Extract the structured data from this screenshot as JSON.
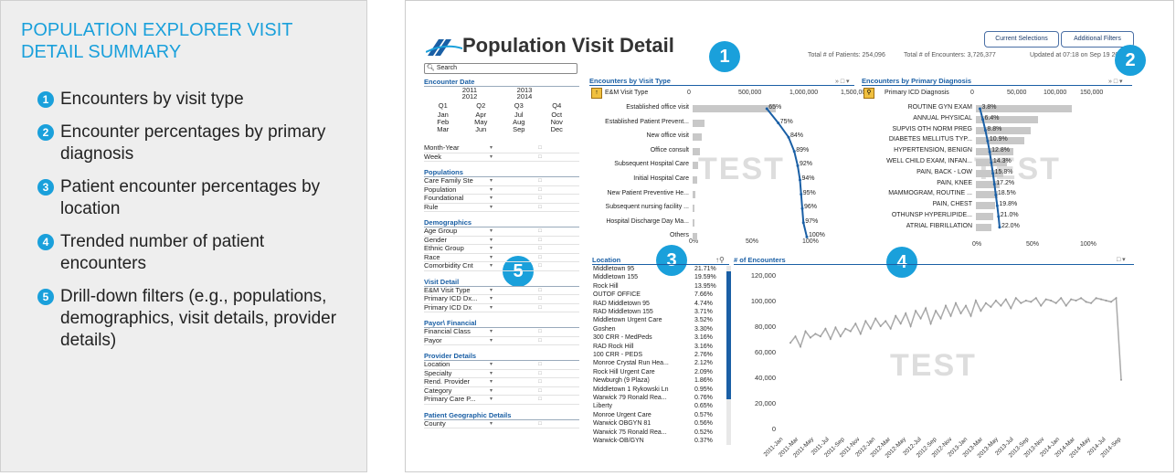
{
  "legend": {
    "title": "POPULATION EXPLORER VISIT DETAIL SUMMARY",
    "items": [
      {
        "num": "1",
        "text": "Encounters by visit type"
      },
      {
        "num": "2",
        "text": "Encounter percentages by primary diagnosis"
      },
      {
        "num": "3",
        "text": "Patient encounter percentages by location"
      },
      {
        "num": "4",
        "text": "Trended number of patient encounters"
      },
      {
        "num": "5",
        "text": "Drill-down filters (e.g., populations, demographics, visit details, provider details)"
      }
    ]
  },
  "app": {
    "title": "Population Visit Detail",
    "total_patients": "Total # of Patients: 254,096",
    "total_encounters": "Total # of Encounters: 3,726,377",
    "updated": "Updated at 07:18 on Sep 19 20",
    "current_selections": "Current Selections",
    "additional_filters": "Additional Filters",
    "callouts": [
      "1",
      "2",
      "3",
      "4",
      "5"
    ],
    "watermark": "TEST"
  },
  "filters": {
    "search_placeholder": "Search",
    "encounter_date_title": "Encounter Date",
    "years": [
      "2011",
      "2012",
      "2013",
      "2014"
    ],
    "quarters": [
      "Q1",
      "Q2",
      "Q3",
      "Q4"
    ],
    "months": [
      "Jan",
      "Apr",
      "Jul",
      "Oct",
      "Feb",
      "May",
      "Aug",
      "Nov",
      "Mar",
      "Jun",
      "Sep",
      "Dec"
    ],
    "date_rows": [
      "Month-Year",
      "Week"
    ],
    "sections": [
      {
        "title": "Populations",
        "rows": [
          "Care Family Ste",
          "Population",
          "Foundational",
          "Rule"
        ]
      },
      {
        "title": "Demographics",
        "rows": [
          "Age Group",
          "Gender",
          "Ethnic Group",
          "Race",
          "Comorbidity Cnt"
        ]
      },
      {
        "title": "Visit Detail",
        "rows": [
          "E&M Visit Type",
          "Primary ICD Dx...",
          "Primary ICD Dx"
        ]
      },
      {
        "title": "Payor\\ Financial",
        "rows": [
          "Financial Class",
          "Payor"
        ]
      },
      {
        "title": "Provider Details",
        "rows": [
          "Location",
          "Specialty",
          "Rend. Provider",
          "Category",
          "Primary Care P..."
        ]
      },
      {
        "title": "Patient Geographic Details",
        "rows": [
          "County"
        ]
      }
    ]
  },
  "visit_type_panel": {
    "title": "Encounters by Visit Type",
    "dimension": "E&M Visit Type",
    "axis_ticks": [
      "0",
      "500,000",
      "1,000,000",
      "1,500,000"
    ],
    "pct_ticks": [
      "0%",
      "50%",
      "100%"
    ],
    "rows": [
      {
        "label": "Established office visit",
        "value": 800000,
        "pct": "65%",
        "pctv": 65
      },
      {
        "label": "Established Patient Prevent...",
        "value": 115000,
        "pct": "75%",
        "pctv": 75
      },
      {
        "label": "New office visit",
        "value": 85000,
        "pct": "84%",
        "pctv": 84
      },
      {
        "label": "Office consult",
        "value": 70000,
        "pct": "89%",
        "pctv": 89
      },
      {
        "label": "Subsequent Hospital Care",
        "value": 55000,
        "pct": "92%",
        "pctv": 92
      },
      {
        "label": "Initial Hospital Care",
        "value": 40000,
        "pct": "94%",
        "pctv": 94
      },
      {
        "label": "New Patient Preventive He...",
        "value": 25000,
        "pct": "95%",
        "pctv": 95
      },
      {
        "label": "Subsequent nursing facility ...",
        "value": 20000,
        "pct": "96%",
        "pctv": 96
      },
      {
        "label": "Hospital Discharge Day Ma...",
        "value": 15000,
        "pct": "97%",
        "pctv": 97
      },
      {
        "label": "Others",
        "value": 45000,
        "pct": "100%",
        "pctv": 100
      }
    ]
  },
  "diagnosis_panel": {
    "title": "Encounters by Primary Diagnosis",
    "dimension": "Primary ICD Diagnosis",
    "axis_ticks": [
      "0",
      "50,000",
      "100,000",
      "150,000"
    ],
    "pct_ticks": [
      "0%",
      "50%",
      "100%"
    ],
    "rows": [
      {
        "label": "ROUTINE GYN EXAM",
        "value": 140000,
        "pct": "3.8%",
        "pctv": 3.8
      },
      {
        "label": "ANNUAL PHYSICAL",
        "value": 90000,
        "pct": "6.4%",
        "pctv": 6.4
      },
      {
        "label": "SUPVIS OTH NORM PREG",
        "value": 80000,
        "pct": "8.8%",
        "pctv": 8.8
      },
      {
        "label": "DIABETES MELLITUS TYP...",
        "value": 70000,
        "pct": "10.9%",
        "pctv": 10.9
      },
      {
        "label": "HYPERTENSION, BENIGN",
        "value": 55000,
        "pct": "12.8%",
        "pctv": 12.8
      },
      {
        "label": "WELL CHILD EXAM, INFAN...",
        "value": 45000,
        "pct": "14.3%",
        "pctv": 14.3
      },
      {
        "label": "PAIN, BACK - LOW",
        "value": 40000,
        "pct": "15.8%",
        "pctv": 15.8
      },
      {
        "label": "PAIN, KNEE",
        "value": 35000,
        "pct": "17.2%",
        "pctv": 17.2
      },
      {
        "label": "MAMMOGRAM, ROUTINE ...",
        "value": 32000,
        "pct": "18.5%",
        "pctv": 18.5
      },
      {
        "label": "PAIN, CHEST",
        "value": 28000,
        "pct": "19.8%",
        "pctv": 19.8
      },
      {
        "label": "OTHUNSP HYPERLIPIDE...",
        "value": 25000,
        "pct": "21.0%",
        "pctv": 21.0
      },
      {
        "label": "ATRIAL FIBRILLATION",
        "value": 22000,
        "pct": "22.0%",
        "pctv": 22.0
      }
    ]
  },
  "location_panel": {
    "title": "Location",
    "rows": [
      {
        "name": "Middletown 95",
        "pct": "21.71%"
      },
      {
        "name": "Middletown 155",
        "pct": "19.59%"
      },
      {
        "name": "Rock Hill",
        "pct": "13.95%"
      },
      {
        "name": "OUTOF OFFICE",
        "pct": "7.66%"
      },
      {
        "name": "RAD Middletown 95",
        "pct": "4.74%"
      },
      {
        "name": "RAD Middletown 155",
        "pct": "3.71%"
      },
      {
        "name": "Middletown Urgent Care",
        "pct": "3.52%"
      },
      {
        "name": "Goshen",
        "pct": "3.30%"
      },
      {
        "name": "300 CRR - MedPeds",
        "pct": "3.16%"
      },
      {
        "name": "RAD Rock Hill",
        "pct": "3.16%"
      },
      {
        "name": "100 CRR - PEDS",
        "pct": "2.76%"
      },
      {
        "name": "Monroe Crystal Run Hea...",
        "pct": "2.12%"
      },
      {
        "name": "Rock Hill Urgent Care",
        "pct": "2.09%"
      },
      {
        "name": "Newburgh (9 Plaza)",
        "pct": "1.86%"
      },
      {
        "name": "Middletown 1 Rykowski Ln",
        "pct": "0.95%"
      },
      {
        "name": "Warwick 79 Ronald Rea...",
        "pct": "0.76%"
      },
      {
        "name": "Liberty",
        "pct": "0.65%"
      },
      {
        "name": "Monroe Urgent Care",
        "pct": "0.57%"
      },
      {
        "name": "Warwick OBGYN 81",
        "pct": "0.56%"
      },
      {
        "name": "Warwick 75 Ronald Rea...",
        "pct": "0.52%"
      },
      {
        "name": "Warwick-OB/GYN",
        "pct": "0.37%"
      }
    ]
  },
  "chart_data": {
    "type": "line",
    "title": "# of Encounters",
    "ylim": [
      0,
      120000
    ],
    "y_ticks": [
      "120,000",
      "100,000",
      "80,000",
      "60,000",
      "40,000",
      "20,000",
      "0"
    ],
    "x_tick_labels": [
      "2011-Jan",
      "2011-Mar",
      "2011-May",
      "2011-Jul",
      "2011-Sep",
      "2011-Nov",
      "2012-Jan",
      "2012-Mar",
      "2012-May",
      "2012-Jul",
      "2012-Sep",
      "2012-Nov",
      "2013-Jan",
      "2013-Mar",
      "2013-May",
      "2013-Jul",
      "2013-Sep",
      "2013-Nov",
      "2014-Jan",
      "2014-Mar",
      "2014-May",
      "2014-Jul",
      "2014-Sep"
    ],
    "series": [
      {
        "values": [
          67000,
          72000,
          64000,
          76000,
          71000,
          74000,
          72000,
          78000,
          70000,
          79000,
          72000,
          78000,
          76000,
          82000,
          74000,
          84000,
          78000,
          86000,
          80000,
          84000,
          78000,
          88000,
          82000,
          90000,
          80000,
          92000,
          86000,
          94000,
          82000,
          92000,
          86000,
          96000,
          88000,
          98000,
          90000,
          96000,
          88000,
          100000,
          92000,
          98000,
          95000,
          100000,
          96000,
          101000,
          94000,
          102000,
          98000,
          100000,
          99000,
          102000,
          96000,
          101000,
          100000,
          98000,
          102000,
          96000,
          101000,
          100000,
          102000,
          99000,
          98000,
          102000,
          101000,
          100000,
          99000,
          102000,
          38000
        ]
      }
    ]
  }
}
